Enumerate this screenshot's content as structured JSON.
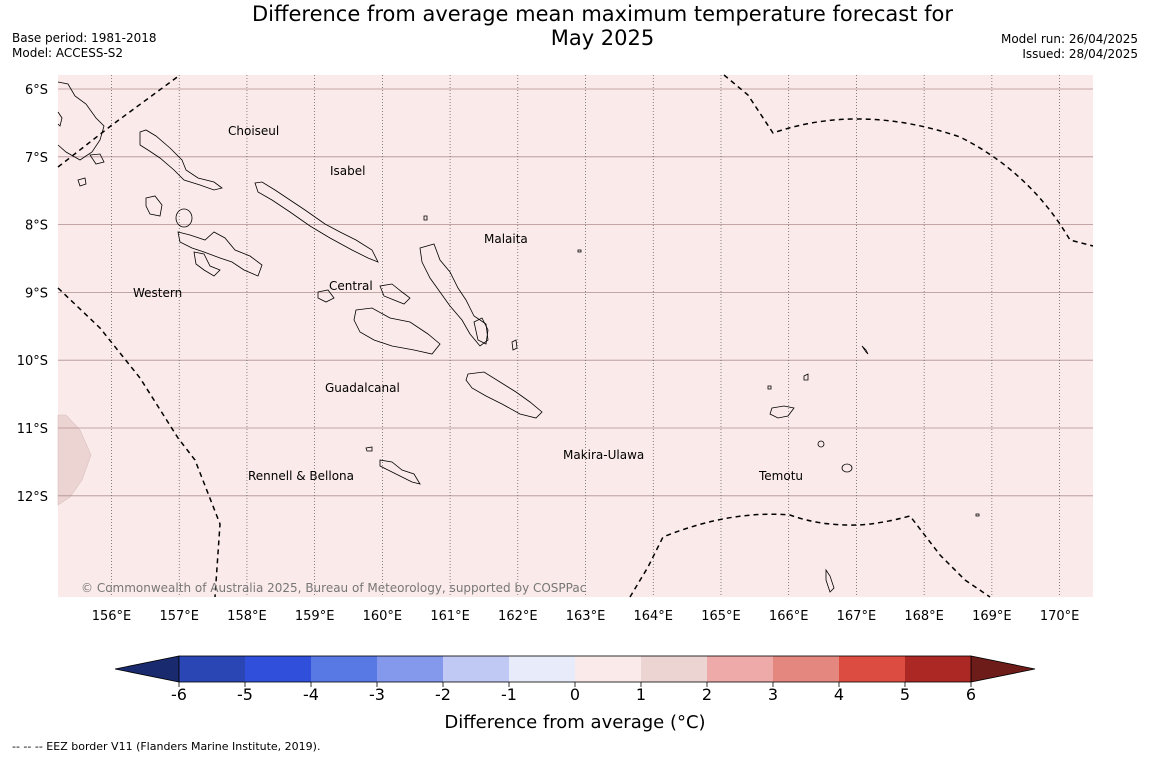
{
  "header": {
    "title_line1": "Difference from average mean maximum temperature forecast for",
    "title_line2": "May 2025",
    "base_period": "Base period: 1981-2018",
    "model": "Model: ACCESS-S2",
    "model_run": "Model run: 26/04/2025",
    "issued": "Issued: 28/04/2025"
  },
  "map": {
    "background_color": "#fbeaea",
    "latitude_labels": [
      "6°S",
      "7°S",
      "8°S",
      "9°S",
      "10°S",
      "11°S",
      "12°S"
    ],
    "longitude_labels": [
      "156°E",
      "157°E",
      "158°E",
      "159°E",
      "160°E",
      "161°E",
      "162°E",
      "163°E",
      "164°E",
      "165°E",
      "166°E",
      "167°E",
      "168°E",
      "169°E",
      "170°E"
    ],
    "regions": [
      "Choiseul",
      "Isabel",
      "Malaita",
      "Western",
      "Central",
      "Guadalcanal",
      "Rennell & Bellona",
      "Makira-Ulawa",
      "Temotu"
    ],
    "copyright": "© Commonwealth of Australia 2025, Bureau of Meteorology, supported by COSPPac"
  },
  "colorbar": {
    "title": "Difference from average (°C)",
    "ticks": [
      "-6",
      "-5",
      "-4",
      "-3",
      "-2",
      "-1",
      "0",
      "1",
      "2",
      "3",
      "4",
      "5",
      "6"
    ],
    "under_color": "#1a2a6e",
    "over_color": "#6e1c1a",
    "colors": [
      "#2a46b4",
      "#3050dc",
      "#5878e4",
      "#8498ec",
      "#c0c8f4",
      "#e8ecfa",
      "#fbeaea",
      "#ecd4d2",
      "#eeaaa8",
      "#e4877f",
      "#dc4c40",
      "#ac2824"
    ]
  },
  "footnote": "--  --  -- EEZ border V11 (Flanders Marine Institute, 2019)."
}
